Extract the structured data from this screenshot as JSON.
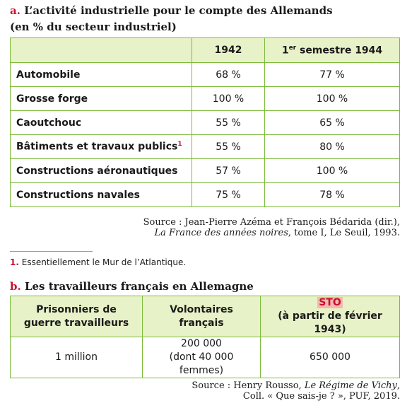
{
  "section_a": {
    "label": "a.",
    "title": "L’activité industrielle pour le compte des Allemands",
    "subtitle": "(en % du secteur industriel)",
    "table": {
      "header": [
        "1942",
        {
          "num": "1",
          "sup": "er",
          "rest": " semestre 1944"
        }
      ],
      "rows": [
        [
          "Automobile",
          "68 %",
          "77 %"
        ],
        [
          "Grosse forge",
          "100 %",
          "100 %"
        ],
        [
          "Caoutchouc",
          "55 %",
          "65 %"
        ],
        [
          {
            "text": "Bâtiments et travaux publics",
            "note": "1"
          },
          "55 %",
          "80 %"
        ],
        [
          "Constructions aéronautiques",
          "57 %",
          "100 %"
        ],
        [
          "Constructions navales",
          "75 %",
          "78 %"
        ]
      ]
    },
    "source": {
      "prefix": "Source : Jean-Pierre Azéma et François Bédarida (dir.),",
      "book": "La France des années noires",
      "suffix": ", tome I, Le Seuil, 1993."
    }
  },
  "footnote": {
    "marker": "1.",
    "text": "Essentiellement le Mur de l’Atlantique."
  },
  "section_b": {
    "label": "b.",
    "title": "Les travailleurs français en Allemagne",
    "table": {
      "header": [
        [
          "Prisonniers de",
          "guerre travailleurs"
        ],
        [
          "Volontaires",
          "français"
        ],
        [
          "STO",
          "(à partir de février 1943)"
        ]
      ],
      "row": [
        [
          "1 million"
        ],
        [
          "200 000",
          "(dont 40 000 femmes)"
        ],
        [
          "650 000"
        ]
      ]
    },
    "source": {
      "prefix": "Source : Henry Rousso, ",
      "book": "Le Régime de Vichy",
      "sep": ",",
      "line2": "Coll. « Que sais-je ? », PUF, 2019."
    }
  }
}
